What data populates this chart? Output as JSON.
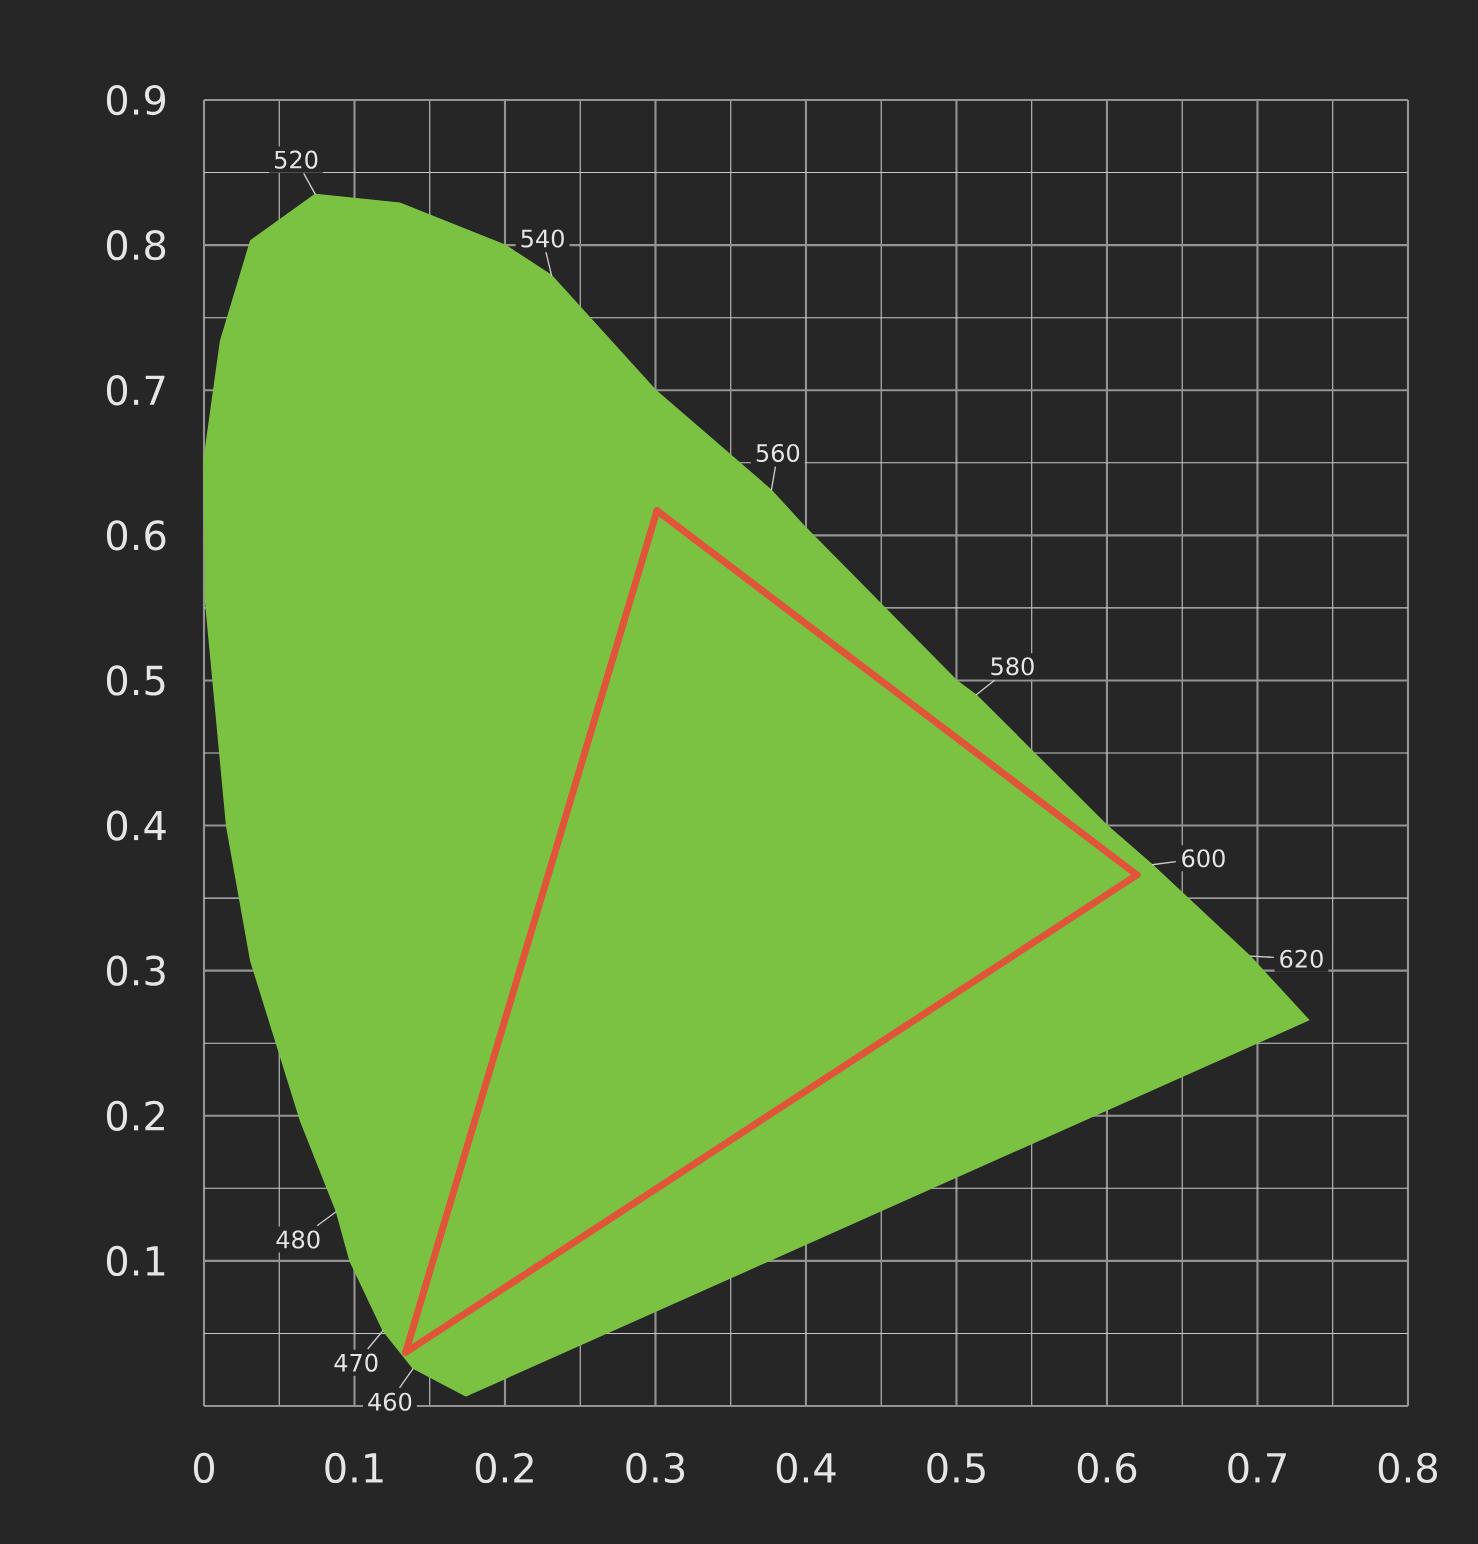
{
  "chart_data": {
    "type": "area",
    "xlim": [
      0,
      0.8
    ],
    "ylim": [
      0,
      0.9
    ],
    "xticks": [
      0,
      0.1,
      0.2,
      0.3,
      0.4,
      0.5,
      0.6,
      0.7,
      0.8
    ],
    "yticks": [
      {
        "value": 0,
        "label": null
      },
      0.1,
      0.2,
      0.3,
      0.4,
      0.5,
      0.6,
      0.7,
      0.8,
      0.9
    ],
    "grid": true,
    "series": [
      {
        "color": "#7cc242",
        "x": [
          0.174,
          0.139,
          0.119,
          0.097,
          0.088,
          0.064,
          0.031,
          0.015,
          0.001,
          0,
          0.011,
          0.031,
          0.074,
          0.13,
          0.2,
          0.231,
          0.3,
          0.377,
          0.4,
          0.5,
          0.513,
          0.6,
          0.63,
          0.695,
          0.734,
          0.174
        ],
        "values": [
          0.007,
          0.026,
          0.052,
          0.1,
          0.134,
          0.197,
          0.307,
          0.4,
          0.555,
          0.652,
          0.734,
          0.803,
          0.835,
          0.829,
          0.8,
          0.779,
          0.7,
          0.631,
          0.605,
          0.5,
          0.49,
          0.4,
          0.373,
          0.31,
          0.266,
          0.007
        ]
      },
      {
        "type": "line",
        "color": "#e0553a",
        "x": [
          0.134,
          0.301
        ],
        "values": [
          0.037,
          0.617
        ]
      },
      {
        "type": "line",
        "color": "#e0553a",
        "x": [
          0.301,
          0.62
        ],
        "values": [
          0.617,
          0.366
        ]
      },
      {
        "type": "line",
        "color": "#e0553a",
        "x": [
          0.134,
          0.62
        ],
        "values": [
          0.037,
          0.366
        ]
      }
    ],
    "annotations": [
      {
        "text": "520",
        "x": 0.074,
        "y": 0.835
      },
      {
        "text": "540",
        "x": 0.231,
        "y": 0.779
      },
      {
        "text": "560",
        "x": 0.377,
        "y": 0.631
      },
      {
        "text": "580",
        "x": 0.513,
        "y": 0.49
      },
      {
        "text": "600",
        "x": 0.63,
        "y": 0.373
      },
      {
        "text": "620",
        "x": 0.695,
        "y": 0.31
      },
      {
        "text": "480",
        "x": 0.088,
        "y": 0.134
      },
      {
        "text": "470",
        "x": 0.119,
        "y": 0.052
      },
      {
        "text": "460",
        "x": 0.139,
        "y": 0.026
      }
    ]
  }
}
